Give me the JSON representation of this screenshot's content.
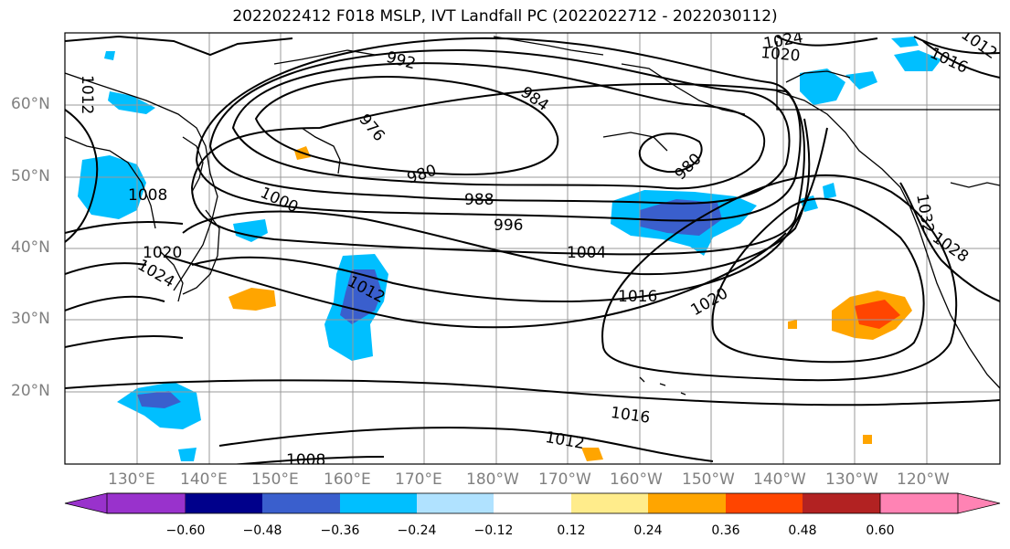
{
  "title": "2022022412 F018 MSLP, IVT Landfall PC (2022022712 - 2022030112)",
  "lat_labels": [
    "60°N",
    "50°N",
    "40°N",
    "30°N",
    "20°N"
  ],
  "lon_labels": [
    "130°E",
    "140°E",
    "150°E",
    "160°E",
    "170°E",
    "180°W",
    "170°W",
    "160°W",
    "150°W",
    "140°W",
    "130°W",
    "120°W"
  ],
  "contour_labels": [
    "1012",
    "992",
    "984",
    "976",
    "980",
    "980",
    "1008",
    "1000",
    "988",
    "996",
    "1020",
    "1004",
    "1024",
    "1012",
    "1016",
    "1020",
    "1016",
    "1012",
    "1008",
    "1024",
    "1020",
    "1016",
    "1012",
    "1032",
    "1028"
  ],
  "colorbar": {
    "colors": [
      "#9932cc",
      "#00008b",
      "#3a5fcd",
      "#00bfff",
      "#b0e2ff",
      "#ffffff",
      "#ffec8b",
      "#ffa500",
      "#ff4500",
      "#b22222",
      "#ff83b4"
    ],
    "tick_labels": [
      "−0.60",
      "−0.48",
      "−0.36",
      "−0.24",
      "−0.12",
      "0.12",
      "0.24",
      "0.36",
      "0.48",
      "0.60"
    ]
  },
  "colors": {
    "contour": "#000000",
    "grid": "#999999",
    "neg_light": "#00bfff",
    "neg_mid": "#3a5fcd",
    "pos_light": "#ffa500",
    "pos_mid": "#ff4500"
  }
}
